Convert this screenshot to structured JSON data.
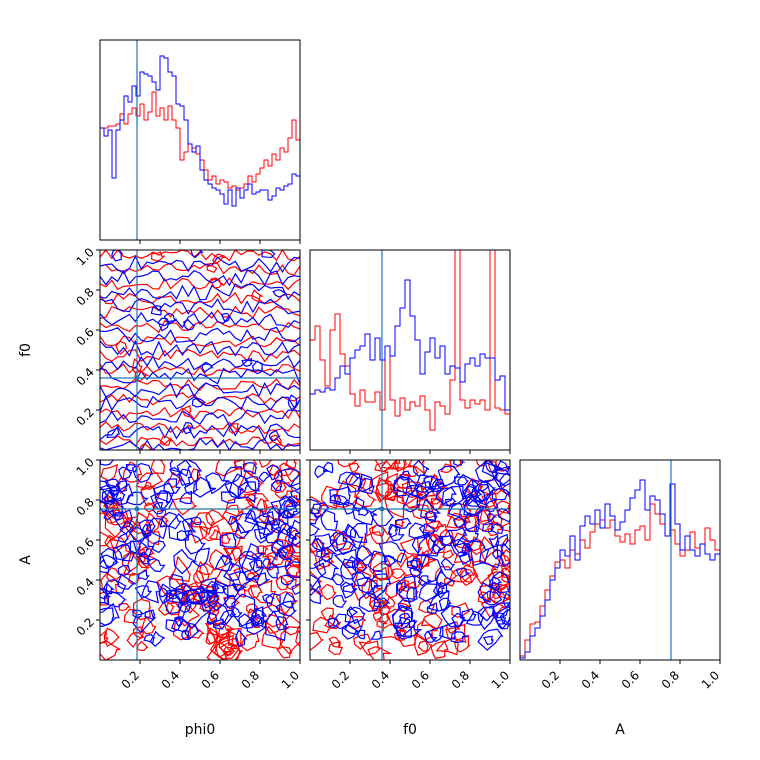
{
  "chart_data": {
    "type": "corner",
    "parameters": [
      "phi0",
      "f0",
      "A"
    ],
    "axis_labels": {
      "x": [
        "phi0",
        "f0",
        "A"
      ],
      "y": [
        "f0",
        "A"
      ]
    },
    "range": [
      0,
      1
    ],
    "ticks": [
      0.2,
      0.4,
      0.6,
      0.8,
      1.0
    ],
    "tick_labels": [
      "0.2",
      "0.4",
      "0.6",
      "0.8",
      "1.0"
    ],
    "truth": [
      0.185,
      0.36,
      0.755
    ],
    "colors": {
      "series_a": "#ff0000",
      "series_b": "#0000ff",
      "truth": "#1f77b4"
    },
    "histograms": [
      {
        "param": "phi0",
        "bins": 50,
        "series_a": [
          0.56,
          0.56,
          0.57,
          0.57,
          0.58,
          0.63,
          0.58,
          0.63,
          0.66,
          0.62,
          0.68,
          0.6,
          0.64,
          0.74,
          0.62,
          0.66,
          0.6,
          0.67,
          0.6,
          0.56,
          0.4,
          0.44,
          0.48,
          0.46,
          0.43,
          0.4,
          0.35,
          0.3,
          0.32,
          0.28,
          0.3,
          0.29,
          0.26,
          0.27,
          0.25,
          0.26,
          0.28,
          0.32,
          0.29,
          0.33,
          0.36,
          0.4,
          0.37,
          0.43,
          0.4,
          0.46,
          0.44,
          0.51,
          0.6,
          0.5
        ],
        "series_b": [
          0.56,
          0.52,
          0.55,
          0.31,
          0.55,
          0.6,
          0.72,
          0.69,
          0.77,
          0.72,
          0.84,
          0.83,
          0.82,
          0.79,
          0.75,
          0.92,
          0.91,
          0.84,
          0.82,
          0.68,
          0.67,
          0.6,
          0.48,
          0.44,
          0.47,
          0.35,
          0.3,
          0.28,
          0.26,
          0.25,
          0.23,
          0.18,
          0.25,
          0.17,
          0.26,
          0.21,
          0.25,
          0.28,
          0.23,
          0.24,
          0.25,
          0.25,
          0.2,
          0.22,
          0.26,
          0.25,
          0.27,
          0.28,
          0.33,
          0.32
        ]
      },
      {
        "param": "f0",
        "bins": 40,
        "series_a": [
          0.55,
          0.62,
          0.45,
          0.32,
          0.6,
          0.68,
          0.48,
          0.42,
          0.28,
          0.22,
          0.3,
          0.24,
          0.24,
          0.29,
          0.2,
          0.52,
          0.25,
          0.17,
          0.26,
          0.2,
          0.24,
          0.22,
          0.27,
          0.2,
          0.1,
          0.24,
          0.22,
          0.18,
          0.35,
          1.0,
          0.25,
          0.21,
          0.25,
          0.23,
          0.25,
          0.2,
          1.0,
          0.21,
          0.2,
          0.18
        ],
        "series_b": [
          0.28,
          0.3,
          0.29,
          0.31,
          0.3,
          0.36,
          0.42,
          0.38,
          0.46,
          0.5,
          0.52,
          0.58,
          0.45,
          0.56,
          0.45,
          0.52,
          0.47,
          0.62,
          0.71,
          0.85,
          0.67,
          0.55,
          0.38,
          0.49,
          0.56,
          0.46,
          0.52,
          0.38,
          0.42,
          0.41,
          0.34,
          0.43,
          0.46,
          0.42,
          0.48,
          0.46,
          0.46,
          0.35,
          0.37,
          0.2
        ]
      },
      {
        "param": "A",
        "bins": 40,
        "series_a": [
          0.02,
          0.1,
          0.18,
          0.19,
          0.27,
          0.35,
          0.42,
          0.49,
          0.5,
          0.46,
          0.55,
          0.53,
          0.6,
          0.56,
          0.64,
          0.68,
          0.7,
          0.66,
          0.7,
          0.62,
          0.59,
          0.63,
          0.58,
          0.65,
          0.67,
          0.6,
          0.78,
          0.73,
          0.68,
          0.62,
          0.65,
          0.58,
          0.52,
          0.55,
          0.64,
          0.56,
          0.58,
          0.66,
          0.6,
          0.55
        ],
        "series_b": [
          0.01,
          0.04,
          0.12,
          0.16,
          0.22,
          0.3,
          0.4,
          0.46,
          0.55,
          0.52,
          0.62,
          0.5,
          0.67,
          0.72,
          0.68,
          0.75,
          0.66,
          0.78,
          0.72,
          0.65,
          0.69,
          0.75,
          0.81,
          0.85,
          0.9,
          0.75,
          0.82,
          0.8,
          0.73,
          0.62,
          0.88,
          0.68,
          0.55,
          0.62,
          0.55,
          0.52,
          0.58,
          0.53,
          0.5,
          0.53
        ]
      }
    ],
    "contour_panels": [
      {
        "x": "phi0",
        "y": "f0"
      },
      {
        "x": "phi0",
        "y": "A"
      },
      {
        "x": "f0",
        "y": "A"
      }
    ]
  }
}
